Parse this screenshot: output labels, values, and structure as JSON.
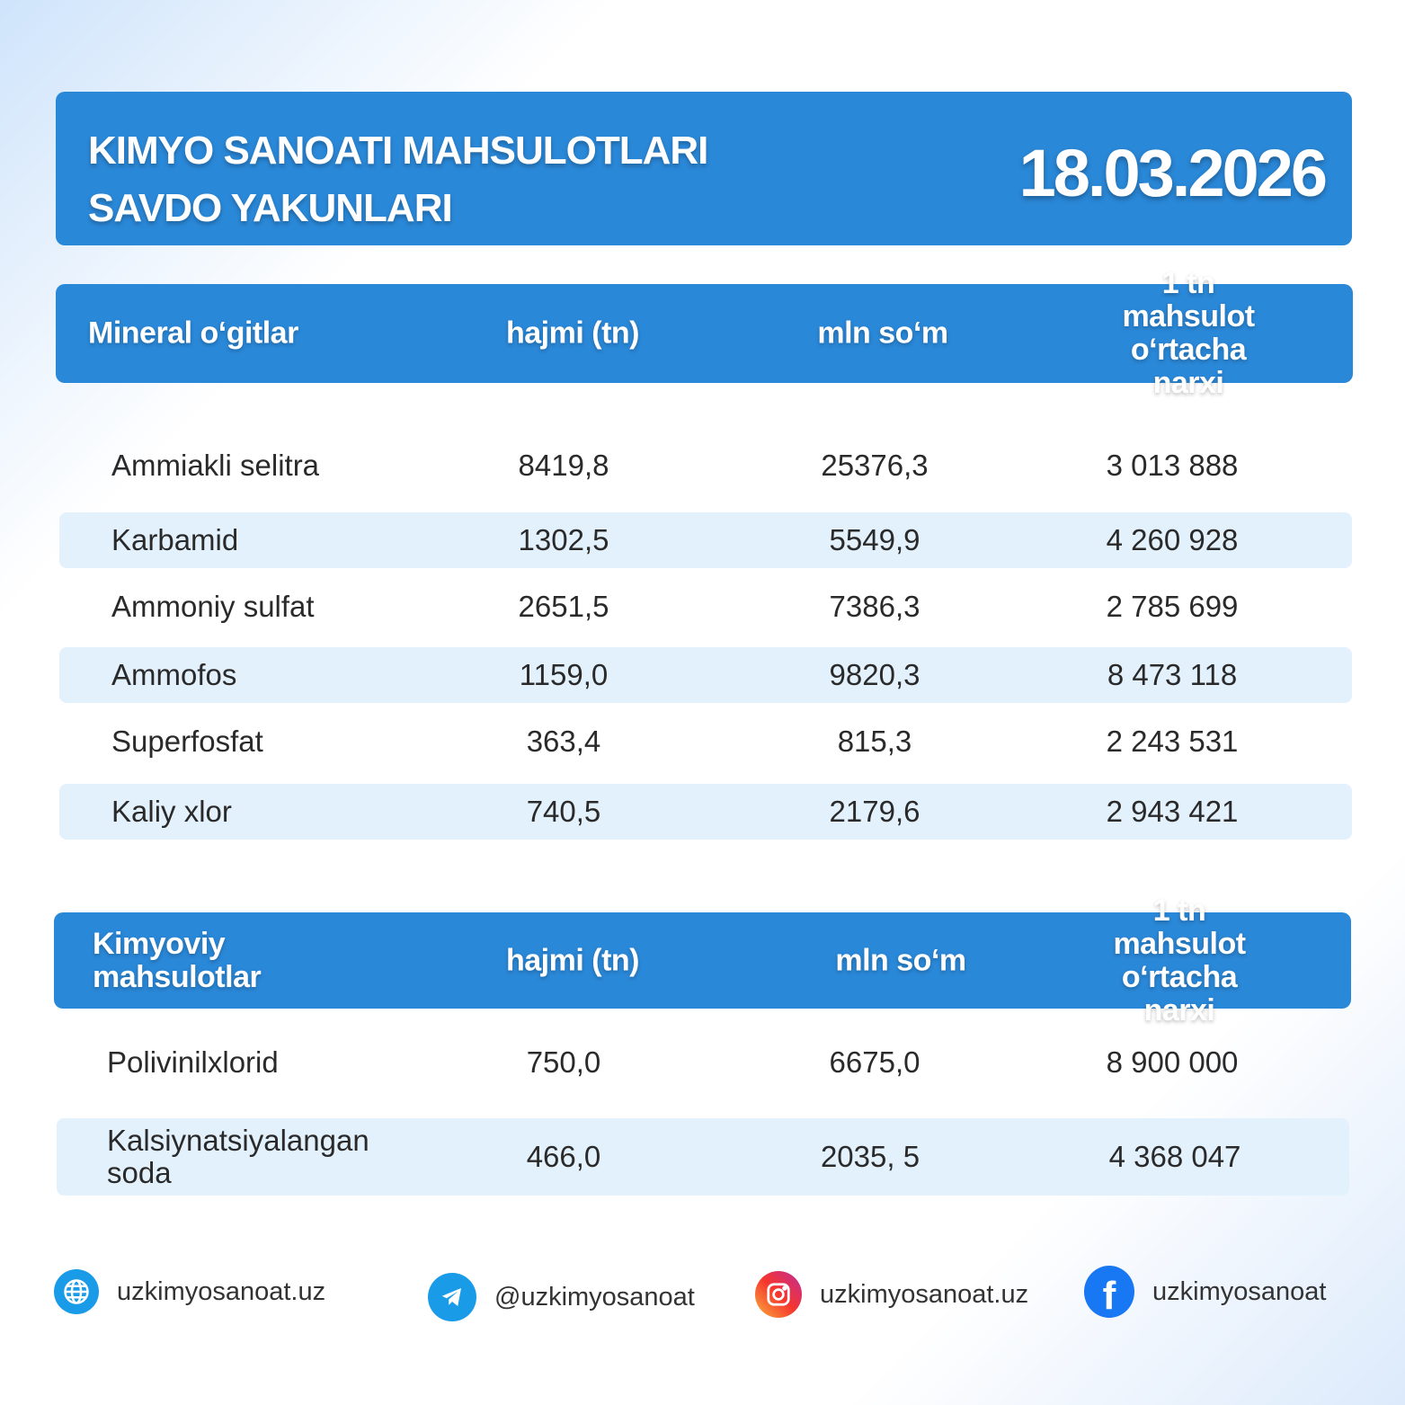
{
  "banner": {
    "title_line1": "KIMYO SANOATI MAHSULOTLARI",
    "title_line2": "SAVDO YAKUNLARI",
    "date": "18.03.2026"
  },
  "table1": {
    "headers": [
      "Mineral o‘gitlar",
      "hajmi (tn)",
      "mln so‘m",
      "1 tn mahsulot",
      "o‘rtacha narxi"
    ],
    "rows": [
      [
        "Ammiakli selitra",
        "8419,8",
        "25376,3",
        "3 013 888"
      ],
      [
        "Karbamid",
        "1302,5",
        "5549,9",
        "4 260 928"
      ],
      [
        "Ammoniy sulfat",
        "2651,5",
        "7386,3",
        "2 785 699"
      ],
      [
        "Ammofos",
        "1159,0",
        "9820,3",
        "8 473 118"
      ],
      [
        "Superfosfat",
        "363,4",
        "815,3",
        "2 243 531"
      ],
      [
        "Kaliy xlor",
        "740,5",
        "2179,6",
        "2 943 421"
      ]
    ]
  },
  "table2": {
    "headers": [
      "Kimyoviy",
      "mahsulotlar",
      "hajmi (tn)",
      "mln so‘m",
      "1 tn mahsulot",
      "o‘rtacha narxi"
    ],
    "rows": [
      [
        "Polivinilxlorid",
        "750,0",
        "6675,0",
        "8 900 000"
      ],
      [
        "Kalsiynatsiyalangan",
        "soda",
        "466,0",
        "2035, 5",
        "4 368 047"
      ]
    ]
  },
  "footer": {
    "website": "uzkimyosanoat.uz",
    "telegram": "@uzkimyosanoat",
    "instagram": "uzkimyosanoat.uz",
    "facebook": "uzkimyosanoat"
  },
  "colors": {
    "accent": "#2a88d8",
    "stripe": "#e3f1fd"
  }
}
